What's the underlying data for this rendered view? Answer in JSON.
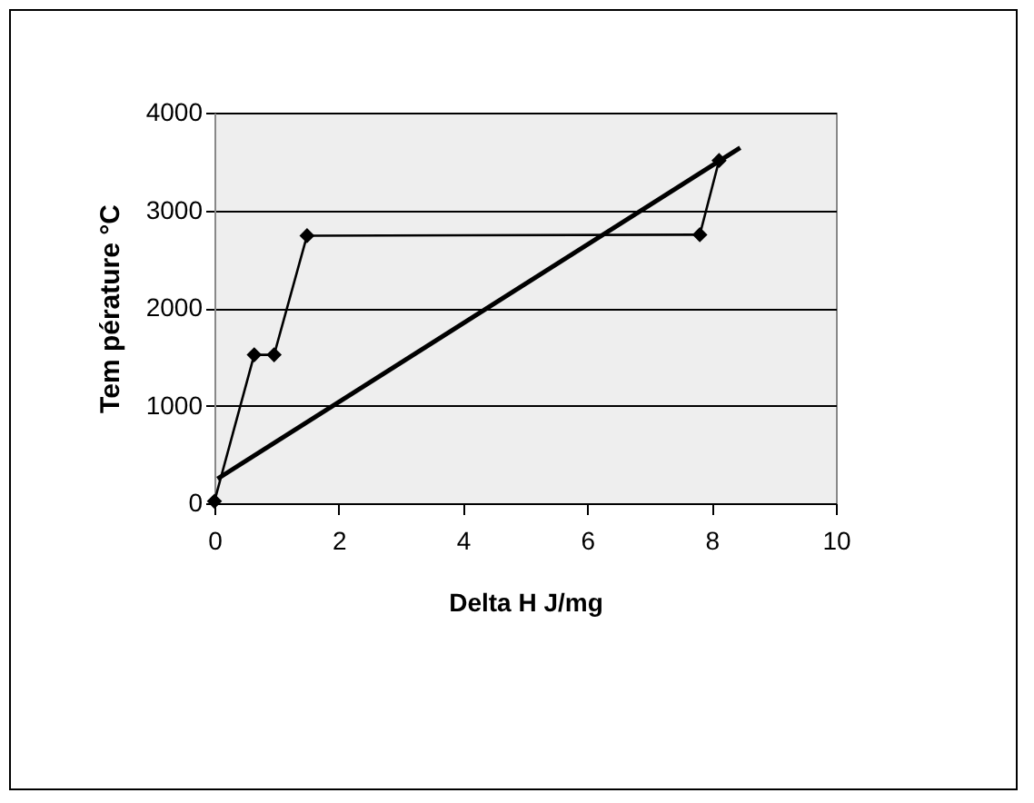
{
  "chart_data": {
    "type": "line",
    "xlabel": "Delta H J/mg",
    "ylabel": "Tem pérature °C",
    "xlim": [
      0,
      10
    ],
    "xticks": [
      0,
      2,
      4,
      6,
      8,
      10
    ],
    "ylim": [
      0,
      4000
    ],
    "yticks": [
      0,
      1000,
      2000,
      3000,
      4000
    ],
    "grid": "y",
    "marker": "diamond",
    "series": [
      {
        "color": "#000000",
        "x": [
          0,
          0.64,
          0.96,
          1.49,
          7.81,
          8.12
        ],
        "values": [
          20,
          1520,
          1520,
          2740,
          2750,
          3510
        ]
      },
      {
        "color": "#000000",
        "x": [
          0.05,
          8.46
        ],
        "values": [
          250,
          3640
        ],
        "marker": "none"
      }
    ]
  }
}
